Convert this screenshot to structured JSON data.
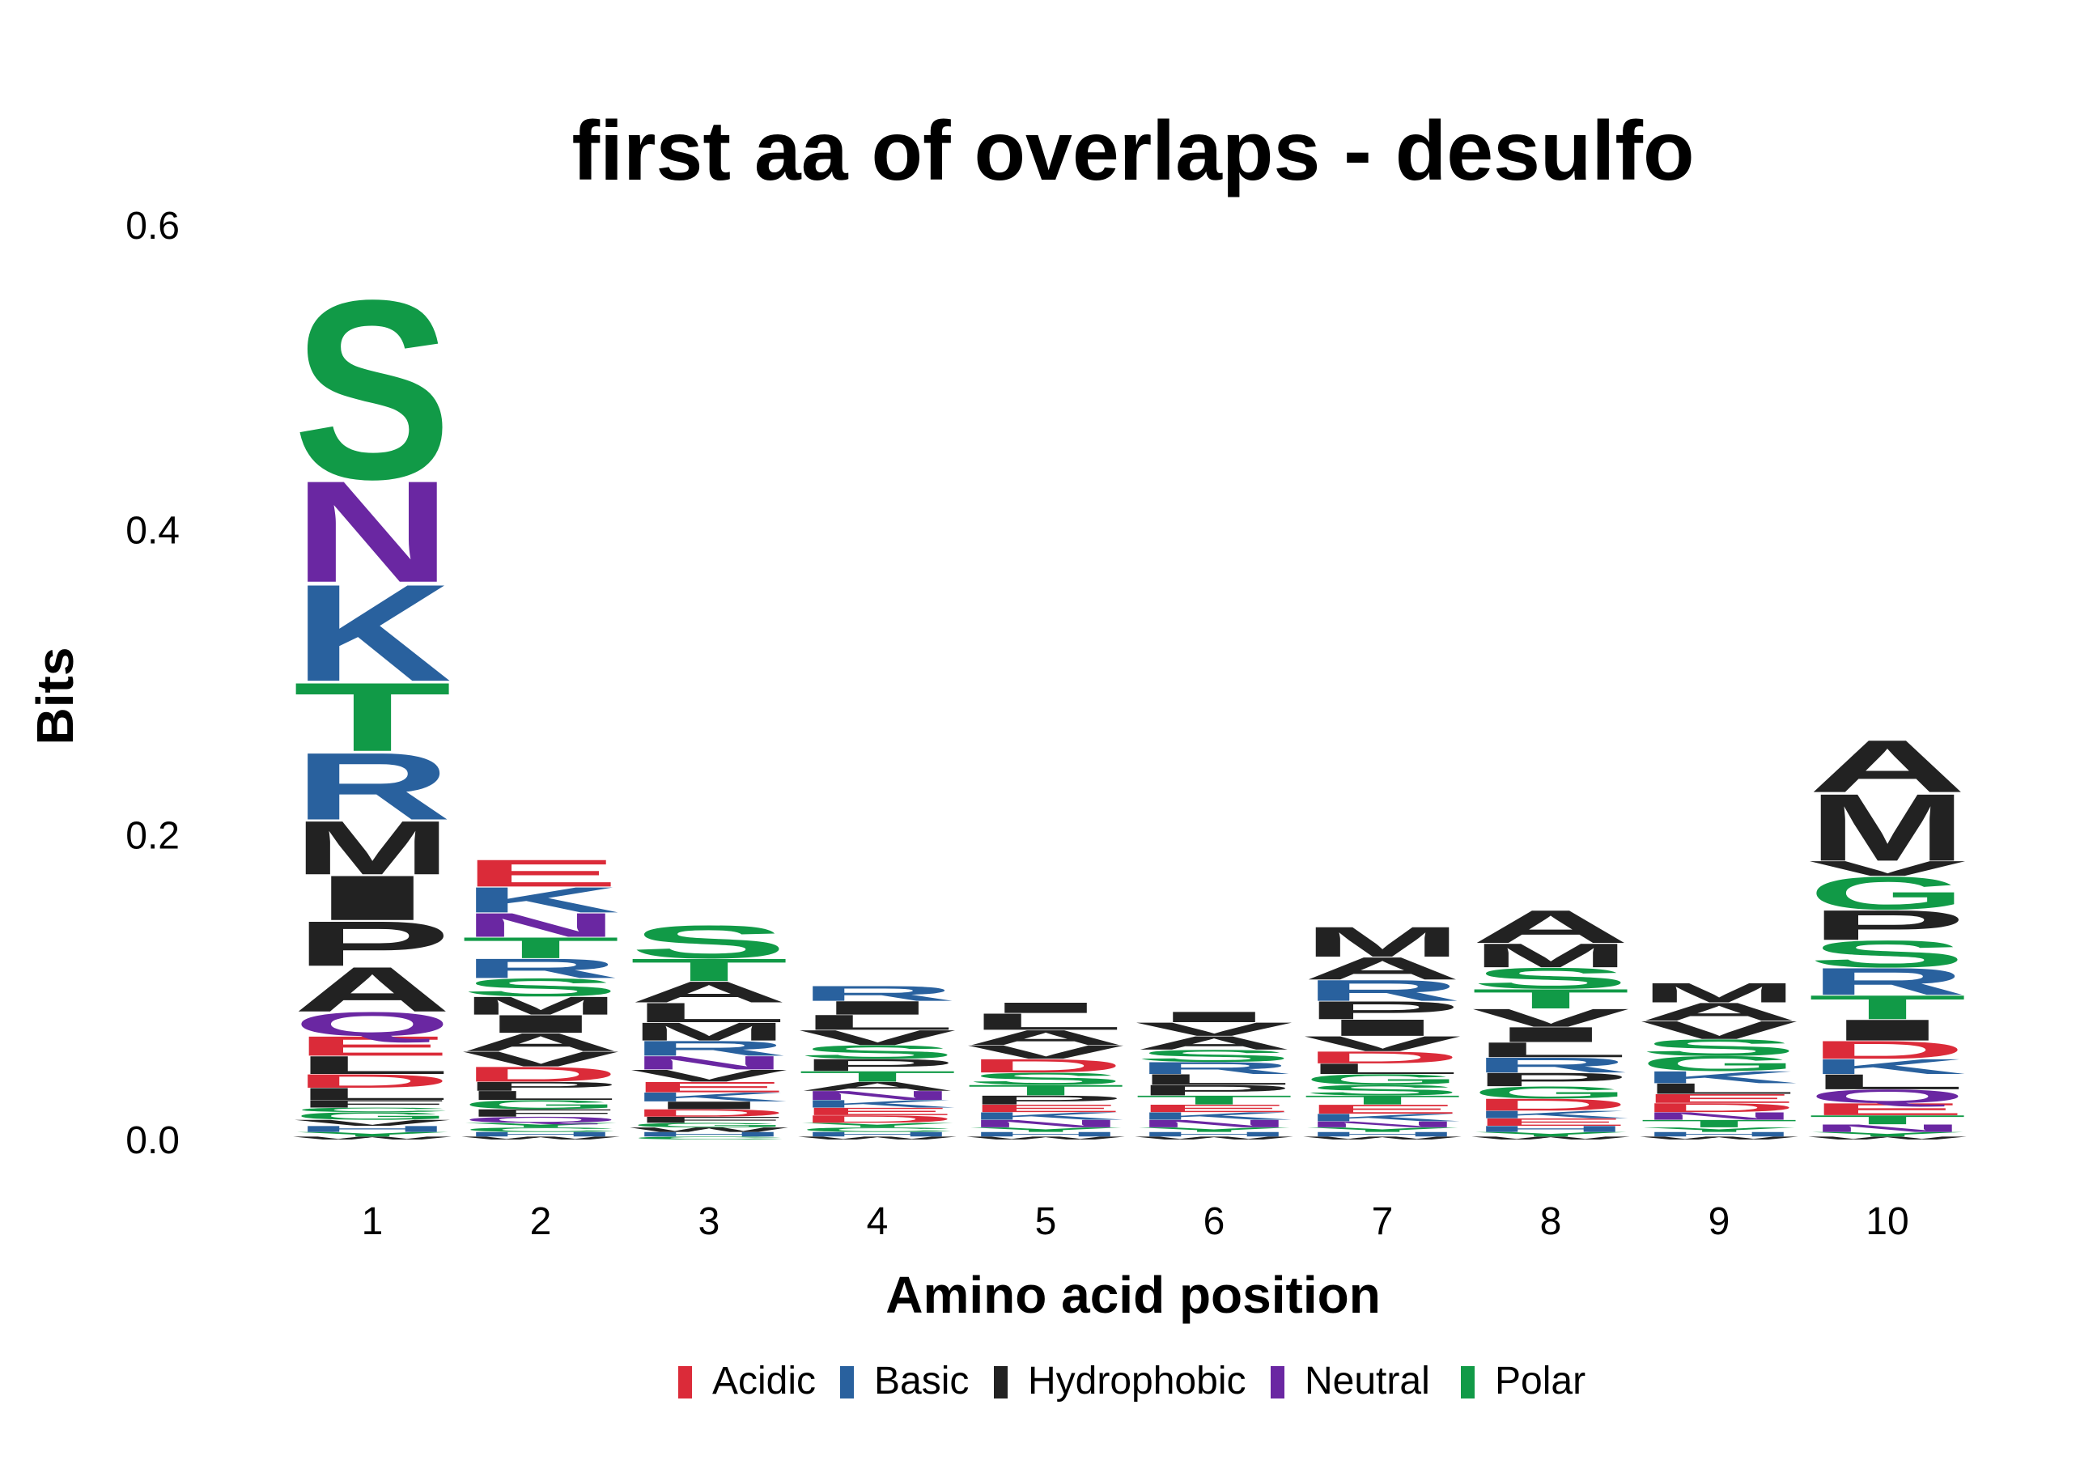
{
  "chart_data": {
    "type": "sequence-logo",
    "title": "first aa of overlaps - desulfo",
    "xlabel": "Amino acid position",
    "ylabel": "Bits",
    "ylim": [
      0,
      0.6
    ],
    "yticks": [
      "0.0",
      "0.2",
      "0.4",
      "0.6"
    ],
    "positions": [
      "1",
      "2",
      "3",
      "4",
      "5",
      "6",
      "7",
      "8",
      "9",
      "10"
    ],
    "grid": false,
    "legend_position": "bottom",
    "legend": [
      {
        "name": "Acidic",
        "color": "#DB2B39"
      },
      {
        "name": "Basic",
        "color": "#29619E"
      },
      {
        "name": "Hydrophobic",
        "color": "#222222"
      },
      {
        "name": "Neutral",
        "color": "#6A27A2"
      },
      {
        "name": "Polar",
        "color": "#119A47"
      }
    ],
    "residue_class": {
      "D": "Acidic",
      "E": "Acidic",
      "K": "Basic",
      "R": "Basic",
      "H": "Basic",
      "A": "Hydrophobic",
      "V": "Hydrophobic",
      "L": "Hydrophobic",
      "I": "Hydrophobic",
      "P": "Hydrophobic",
      "W": "Hydrophobic",
      "F": "Hydrophobic",
      "M": "Hydrophobic",
      "Q": "Neutral",
      "N": "Neutral",
      "S": "Polar",
      "T": "Polar",
      "G": "Polar",
      "Y": "Polar",
      "C": "Polar"
    },
    "stacks": [
      [
        [
          "W",
          0.002
        ],
        [
          "Y",
          0.003
        ],
        [
          "H",
          0.004
        ],
        [
          "V",
          0.004
        ],
        [
          "G",
          0.005
        ],
        [
          "C",
          0.003
        ],
        [
          "F",
          0.005
        ],
        [
          "L",
          0.008
        ],
        [
          "D",
          0.009
        ],
        [
          "L",
          0.012
        ],
        [
          "E",
          0.013
        ],
        [
          "Q",
          0.016
        ],
        [
          "A",
          0.03
        ],
        [
          "P",
          0.03
        ],
        [
          "I",
          0.03
        ],
        [
          "M",
          0.036
        ],
        [
          "R",
          0.045
        ],
        [
          "T",
          0.046
        ],
        [
          "K",
          0.065
        ],
        [
          "N",
          0.068
        ],
        [
          "S",
          0.12
        ]
      ],
      [
        [
          "W",
          0.002
        ],
        [
          "H",
          0.003
        ],
        [
          "C",
          0.003
        ],
        [
          "Y",
          0.003
        ],
        [
          "Q",
          0.004
        ],
        [
          "F",
          0.005
        ],
        [
          "G",
          0.006
        ],
        [
          "L",
          0.006
        ],
        [
          "P",
          0.006
        ],
        [
          "D",
          0.01
        ],
        [
          "V",
          0.01
        ],
        [
          "A",
          0.012
        ],
        [
          "I",
          0.012
        ],
        [
          "M",
          0.012
        ],
        [
          "S",
          0.012
        ],
        [
          "R",
          0.013
        ],
        [
          "T",
          0.014
        ],
        [
          "N",
          0.016
        ],
        [
          "K",
          0.017
        ],
        [
          "E",
          0.018
        ]
      ],
      [
        [
          "C",
          0.002
        ],
        [
          "H",
          0.003
        ],
        [
          "W",
          0.003
        ],
        [
          "G",
          0.003
        ],
        [
          "F",
          0.004
        ],
        [
          "D",
          0.005
        ],
        [
          "I",
          0.005
        ],
        [
          "K",
          0.006
        ],
        [
          "E",
          0.007
        ],
        [
          "V",
          0.008
        ],
        [
          "N",
          0.009
        ],
        [
          "R",
          0.01
        ],
        [
          "M",
          0.012
        ],
        [
          "L",
          0.013
        ],
        [
          "A",
          0.014
        ],
        [
          "T",
          0.015
        ],
        [
          "S",
          0.022
        ]
      ],
      [
        [
          "W",
          0.002
        ],
        [
          "H",
          0.003
        ],
        [
          "C",
          0.003
        ],
        [
          "Y",
          0.003
        ],
        [
          "D",
          0.005
        ],
        [
          "E",
          0.005
        ],
        [
          "K",
          0.005
        ],
        [
          "N",
          0.006
        ],
        [
          "A",
          0.006
        ],
        [
          "T",
          0.007
        ],
        [
          "P",
          0.008
        ],
        [
          "S",
          0.009
        ],
        [
          "V",
          0.01
        ],
        [
          "L",
          0.01
        ],
        [
          "I",
          0.009
        ],
        [
          "R",
          0.01
        ]
      ],
      [
        [
          "W",
          0.002
        ],
        [
          "H",
          0.003
        ],
        [
          "Y",
          0.003
        ],
        [
          "N",
          0.005
        ],
        [
          "K",
          0.005
        ],
        [
          "E",
          0.005
        ],
        [
          "P",
          0.006
        ],
        [
          "T",
          0.007
        ],
        [
          "S",
          0.008
        ],
        [
          "D",
          0.009
        ],
        [
          "V",
          0.009
        ],
        [
          "A",
          0.01
        ],
        [
          "L",
          0.011
        ],
        [
          "I",
          0.007
        ]
      ],
      [
        [
          "W",
          0.002
        ],
        [
          "H",
          0.003
        ],
        [
          "Y",
          0.003
        ],
        [
          "N",
          0.005
        ],
        [
          "K",
          0.005
        ],
        [
          "E",
          0.005
        ],
        [
          "T",
          0.006
        ],
        [
          "P",
          0.007
        ],
        [
          "L",
          0.007
        ],
        [
          "R",
          0.008
        ],
        [
          "S",
          0.008
        ],
        [
          "A",
          0.009
        ],
        [
          "V",
          0.009
        ],
        [
          "I",
          0.007
        ]
      ],
      [
        [
          "W",
          0.002
        ],
        [
          "H",
          0.003
        ],
        [
          "Y",
          0.003
        ],
        [
          "N",
          0.004
        ],
        [
          "K",
          0.005
        ],
        [
          "E",
          0.006
        ],
        [
          "T",
          0.006
        ],
        [
          "S",
          0.007
        ],
        [
          "G",
          0.007
        ],
        [
          "L",
          0.007
        ],
        [
          "D",
          0.008
        ],
        [
          "V",
          0.01
        ],
        [
          "I",
          0.011
        ],
        [
          "P",
          0.012
        ],
        [
          "R",
          0.014
        ],
        [
          "A",
          0.015
        ],
        [
          "M",
          0.02
        ]
      ],
      [
        [
          "W",
          0.002
        ],
        [
          "Y",
          0.003
        ],
        [
          "H",
          0.004
        ],
        [
          "E",
          0.005
        ],
        [
          "K",
          0.005
        ],
        [
          "D",
          0.008
        ],
        [
          "G",
          0.008
        ],
        [
          "P",
          0.009
        ],
        [
          "R",
          0.01
        ],
        [
          "L",
          0.01
        ],
        [
          "I",
          0.01
        ],
        [
          "V",
          0.012
        ],
        [
          "T",
          0.013
        ],
        [
          "S",
          0.014
        ],
        [
          "M",
          0.016
        ],
        [
          "A",
          0.022
        ]
      ],
      [
        [
          "W",
          0.002
        ],
        [
          "H",
          0.003
        ],
        [
          "Y",
          0.003
        ],
        [
          "T",
          0.005
        ],
        [
          "N",
          0.005
        ],
        [
          "D",
          0.006
        ],
        [
          "E",
          0.006
        ],
        [
          "L",
          0.007
        ],
        [
          "K",
          0.008
        ],
        [
          "G",
          0.01
        ],
        [
          "S",
          0.011
        ],
        [
          "V",
          0.012
        ],
        [
          "A",
          0.012
        ],
        [
          "M",
          0.013
        ]
      ],
      [
        [
          "W",
          0.002
        ],
        [
          "Y",
          0.003
        ],
        [
          "N",
          0.005
        ],
        [
          "T",
          0.006
        ],
        [
          "E",
          0.008
        ],
        [
          "Q",
          0.009
        ],
        [
          "L",
          0.01
        ],
        [
          "K",
          0.01
        ],
        [
          "D",
          0.012
        ],
        [
          "I",
          0.014
        ],
        [
          "T",
          0.016
        ],
        [
          "R",
          0.018
        ],
        [
          "S",
          0.018
        ],
        [
          "P",
          0.02
        ],
        [
          "G",
          0.022
        ],
        [
          "V",
          0.01
        ],
        [
          "M",
          0.045
        ],
        [
          "A",
          0.035
        ]
      ]
    ]
  }
}
